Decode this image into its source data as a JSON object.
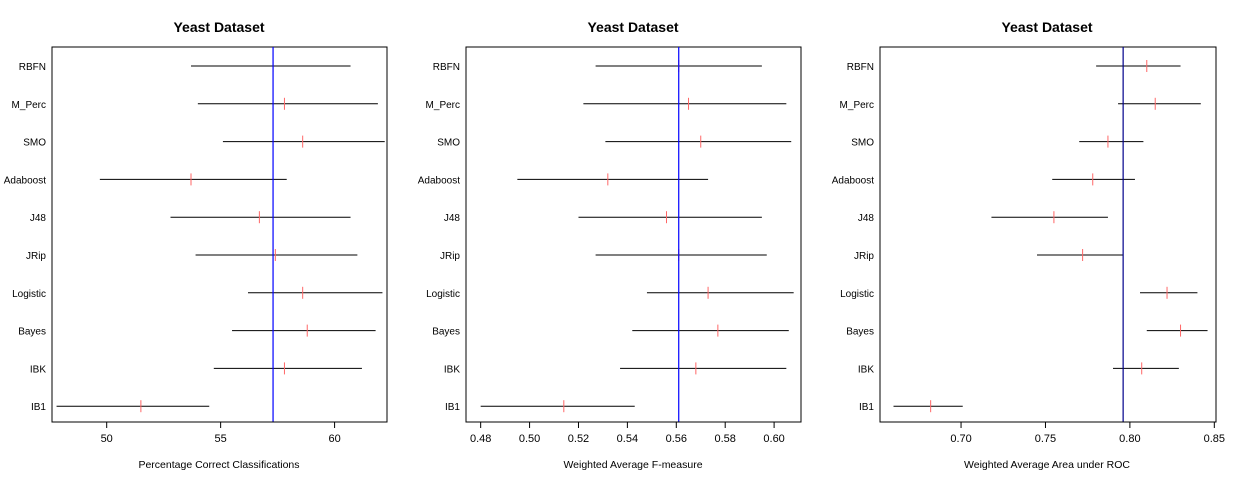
{
  "chart_data": [
    {
      "type": "interval",
      "title": "Yeast Dataset",
      "xlabel": "Percentage Correct Classifications",
      "categories": [
        "RBFN",
        "M_Perc",
        "SMO",
        "Adaboost",
        "J48",
        "JRip",
        "Logistic",
        "Bayes",
        "IBK",
        "IB1"
      ],
      "xlim": [
        47.6,
        62.3
      ],
      "xticks": [
        "50",
        "55",
        "60"
      ],
      "xtick_values": [
        50,
        55,
        60
      ],
      "reference_line": 57.3,
      "reference_color": "#0000ff",
      "mean_color": "#ff6666",
      "intervals": [
        {
          "low": 53.7,
          "mean": 57.3,
          "high": 60.7
        },
        {
          "low": 54.0,
          "mean": 57.8,
          "high": 61.9
        },
        {
          "low": 55.1,
          "mean": 58.6,
          "high": 62.2
        },
        {
          "low": 49.7,
          "mean": 53.7,
          "high": 57.9
        },
        {
          "low": 52.8,
          "mean": 56.7,
          "high": 60.7
        },
        {
          "low": 53.9,
          "mean": 57.4,
          "high": 61.0
        },
        {
          "low": 56.2,
          "mean": 58.6,
          "high": 62.1
        },
        {
          "low": 55.5,
          "mean": 58.8,
          "high": 61.8
        },
        {
          "low": 54.7,
          "mean": 57.8,
          "high": 61.2
        },
        {
          "low": 47.8,
          "mean": 51.5,
          "high": 54.5
        }
      ]
    },
    {
      "type": "interval",
      "title": "Yeast Dataset",
      "xlabel": "Weighted Average F-measure",
      "categories": [
        "RBFN",
        "M_Perc",
        "SMO",
        "Adaboost",
        "J48",
        "JRip",
        "Logistic",
        "Bayes",
        "IBK",
        "IB1"
      ],
      "xlim": [
        0.474,
        0.611
      ],
      "xticks": [
        "0.48",
        "0.50",
        "0.52",
        "0.54",
        "0.56",
        "0.58",
        "0.60"
      ],
      "xtick_values": [
        0.48,
        0.5,
        0.52,
        0.54,
        0.56,
        0.58,
        0.6
      ],
      "reference_line": 0.561,
      "reference_color": "#0000ff",
      "mean_color": "#ff6666",
      "intervals": [
        {
          "low": 0.527,
          "mean": 0.561,
          "high": 0.595
        },
        {
          "low": 0.522,
          "mean": 0.565,
          "high": 0.605
        },
        {
          "low": 0.531,
          "mean": 0.57,
          "high": 0.607
        },
        {
          "low": 0.495,
          "mean": 0.532,
          "high": 0.573
        },
        {
          "low": 0.52,
          "mean": 0.556,
          "high": 0.595
        },
        {
          "low": 0.527,
          "mean": 0.561,
          "high": 0.597
        },
        {
          "low": 0.548,
          "mean": 0.573,
          "high": 0.608
        },
        {
          "low": 0.542,
          "mean": 0.577,
          "high": 0.606
        },
        {
          "low": 0.537,
          "mean": 0.568,
          "high": 0.605
        },
        {
          "low": 0.48,
          "mean": 0.514,
          "high": 0.543
        }
      ]
    },
    {
      "type": "interval",
      "title": "Yeast Dataset",
      "xlabel": "Weighted Average Area under ROC",
      "categories": [
        "RBFN",
        "M_Perc",
        "SMO",
        "Adaboost",
        "J48",
        "JRip",
        "Logistic",
        "Bayes",
        "IBK",
        "IB1"
      ],
      "xlim": [
        0.652,
        0.851
      ],
      "xticks": [
        "0.70",
        "0.75",
        "0.80",
        "0.85"
      ],
      "xtick_values": [
        0.7,
        0.75,
        0.8,
        0.85
      ],
      "reference_line": 0.796,
      "reference_color": "#00008b",
      "mean_color": "#ff6666",
      "intervals": [
        {
          "low": 0.78,
          "mean": 0.81,
          "high": 0.83
        },
        {
          "low": 0.793,
          "mean": 0.815,
          "high": 0.842
        },
        {
          "low": 0.77,
          "mean": 0.787,
          "high": 0.808
        },
        {
          "low": 0.754,
          "mean": 0.778,
          "high": 0.803
        },
        {
          "low": 0.718,
          "mean": 0.755,
          "high": 0.787
        },
        {
          "low": 0.745,
          "mean": 0.772,
          "high": 0.796
        },
        {
          "low": 0.806,
          "mean": 0.822,
          "high": 0.84
        },
        {
          "low": 0.81,
          "mean": 0.83,
          "high": 0.846
        },
        {
          "low": 0.79,
          "mean": 0.807,
          "high": 0.829
        },
        {
          "low": 0.66,
          "mean": 0.682,
          "high": 0.701
        }
      ]
    }
  ]
}
